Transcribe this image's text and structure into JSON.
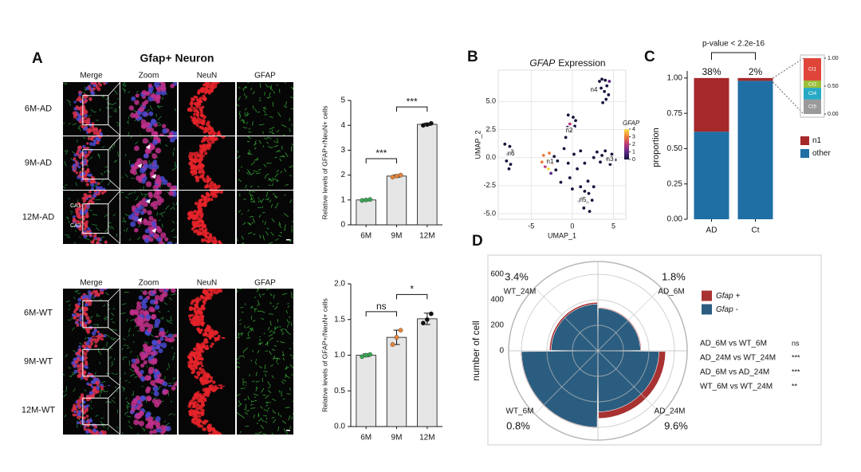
{
  "panel_a": {
    "label": "A",
    "title": "Gfap+ Neuron",
    "columns": [
      "Merge",
      "Zoom",
      "NeuN",
      "GFAP"
    ],
    "ad_rows": [
      "6M-AD",
      "9M-AD",
      "12M-AD"
    ],
    "wt_rows": [
      "6M-WT",
      "9M-WT",
      "12M-WT"
    ],
    "region_labels": [
      "CA1",
      "CA3"
    ],
    "ad_chart": {
      "type": "bar",
      "ylabel": "Relative levels of GFAP+/NeuN+ cells",
      "categories": [
        "6M",
        "9M",
        "12M"
      ],
      "values": [
        1.0,
        1.96,
        4.04
      ],
      "errors": [
        0.03,
        0.05,
        0.05
      ],
      "points": [
        [
          0.98,
          1.0,
          1.02
        ],
        [
          1.92,
          1.96,
          2.0
        ],
        [
          4.0,
          4.03,
          4.08
        ]
      ],
      "point_colors": [
        "#3aa655",
        "#e8843a",
        "#111111"
      ],
      "bar_color": "#e6e6e6",
      "ylim": [
        0,
        5
      ],
      "yticks": [
        0,
        1,
        2,
        3,
        4,
        5
      ],
      "comparisons": [
        {
          "groups": [
            "6M",
            "9M"
          ],
          "label": "***"
        },
        {
          "groups": [
            "9M",
            "12M"
          ],
          "label": "***"
        }
      ]
    },
    "wt_chart": {
      "type": "bar",
      "ylabel": "Relative levels of GFAP+/NeuN+ cells",
      "categories": [
        "6M",
        "9M",
        "12M"
      ],
      "values": [
        1.0,
        1.25,
        1.51
      ],
      "errors": [
        0.02,
        0.1,
        0.08
      ],
      "points": [
        [
          0.98,
          1.0,
          1.01
        ],
        [
          1.15,
          1.25,
          1.35
        ],
        [
          1.45,
          1.5,
          1.58
        ]
      ],
      "point_colors": [
        "#3aa655",
        "#e8843a",
        "#111111"
      ],
      "bar_color": "#e6e6e6",
      "ylim": [
        0,
        2
      ],
      "yticks": [
        {
          "value": 0,
          "label": "0.0"
        },
        {
          "value": 0.5,
          "label": "0.5"
        },
        {
          "value": 1,
          "label": "1.0"
        },
        {
          "value": 1.5,
          "label": "1.5"
        },
        {
          "value": 2,
          "label": "2.0"
        }
      ],
      "comparisons": [
        {
          "groups": [
            "6M",
            "9M"
          ],
          "label": "ns"
        },
        {
          "groups": [
            "9M",
            "12M"
          ],
          "label": "*"
        }
      ]
    }
  },
  "panel_b": {
    "type": "scatter",
    "label": "B",
    "title_gene": "GFAP",
    "title": "Expression",
    "xlabel": "UMAP_1",
    "ylabel": "UMAP_2",
    "xlim": [
      -9,
      6.5
    ],
    "ylim": [
      -5.5,
      7.8
    ],
    "xticks": [
      -5,
      0,
      5
    ],
    "yticks": [
      {
        "value": -5,
        "label": "-5.0"
      },
      {
        "value": -2.5,
        "label": "-2.5"
      },
      {
        "value": 0,
        "label": "0.0"
      },
      {
        "value": 2.5,
        "label": "2.5"
      },
      {
        "value": 5,
        "label": "5.0"
      }
    ],
    "grid": true,
    "clusters": [
      "n1",
      "n2",
      "n3",
      "n4",
      "n5",
      "n6"
    ],
    "color_scale": {
      "title": "GFAP",
      "ticks": [
        0,
        1,
        2,
        3,
        4
      ],
      "colors": [
        "#14143c",
        "#5b2a86",
        "#b8377a",
        "#ee7d3a",
        "#f7e04a"
      ]
    },
    "points": [
      [
        3.3,
        6.8,
        0
      ],
      [
        3.6,
        7.0,
        0
      ],
      [
        4.0,
        6.9,
        0
      ],
      [
        4.2,
        6.4,
        0
      ],
      [
        3.9,
        5.9,
        0
      ],
      [
        3.5,
        6.2,
        0
      ],
      [
        4.4,
        5.6,
        0
      ],
      [
        4.1,
        5.2,
        0
      ],
      [
        3.7,
        4.9,
        0
      ],
      [
        4.5,
        6.8,
        1
      ],
      [
        -0.5,
        3.8,
        0
      ],
      [
        0.1,
        3.6,
        0
      ],
      [
        -0.3,
        3.0,
        2
      ],
      [
        0.3,
        2.8,
        0
      ],
      [
        -0.1,
        2.4,
        0
      ],
      [
        0.4,
        3.3,
        0
      ],
      [
        -0.6,
        2.7,
        0
      ],
      [
        -8.2,
        1.2,
        0
      ],
      [
        -7.6,
        1.0,
        0
      ],
      [
        -7.9,
        0.3,
        0
      ],
      [
        -7.3,
        0.6,
        0
      ],
      [
        -8.0,
        -0.3,
        0
      ],
      [
        -7.5,
        -0.6,
        0
      ],
      [
        -7.7,
        -1.0,
        0
      ],
      [
        -3.5,
        0.2,
        3
      ],
      [
        -3.1,
        -0.2,
        4
      ],
      [
        -2.8,
        0.4,
        3
      ],
      [
        -2.4,
        -0.6,
        3
      ],
      [
        -3.3,
        -0.8,
        2
      ],
      [
        -2.9,
        -1.0,
        4
      ],
      [
        -2.2,
        0.1,
        0
      ],
      [
        -3.7,
        -0.4,
        3
      ],
      [
        -2.6,
        -1.4,
        1
      ],
      [
        -1.8,
        -0.3,
        0
      ],
      [
        -2.0,
        -1.1,
        0
      ],
      [
        -1.0,
        0.8,
        0
      ],
      [
        -0.5,
        -0.5,
        0
      ],
      [
        0.2,
        0.3,
        0
      ],
      [
        0.6,
        -1.0,
        0
      ],
      [
        -0.3,
        -1.8,
        0
      ],
      [
        1.0,
        0.6,
        0
      ],
      [
        -1.4,
        -2.2,
        0
      ],
      [
        0.0,
        -2.8,
        0
      ],
      [
        1.5,
        -0.5,
        0
      ],
      [
        -0.8,
        1.8,
        0
      ],
      [
        3.0,
        0.5,
        0
      ],
      [
        3.6,
        0.2,
        0
      ],
      [
        4.2,
        -0.1,
        0
      ],
      [
        4.8,
        0.3,
        0
      ],
      [
        5.2,
        -0.2,
        0
      ],
      [
        4.0,
        0.6,
        0
      ],
      [
        3.4,
        -0.4,
        0
      ],
      [
        2.6,
        0.0,
        0
      ],
      [
        4.6,
        -0.6,
        0
      ],
      [
        1.0,
        -2.6,
        0
      ],
      [
        1.5,
        -3.0,
        0
      ],
      [
        2.0,
        -3.2,
        0
      ],
      [
        1.2,
        -3.6,
        0
      ],
      [
        1.8,
        -4.0,
        0
      ],
      [
        2.4,
        -3.8,
        0
      ],
      [
        1.4,
        -4.5,
        0
      ],
      [
        2.1,
        -4.8,
        0
      ],
      [
        0.8,
        -3.9,
        0
      ],
      [
        2.6,
        -2.6,
        0
      ],
      [
        1.9,
        -2.1,
        0
      ]
    ]
  },
  "panel_c": {
    "type": "stacked_bar",
    "label": "C",
    "annotation": "p-value < 2.2e-16",
    "ylabel": "proportion",
    "categories": [
      "AD",
      "Ct"
    ],
    "series": [
      {
        "name": "n1",
        "color": "#a5282a",
        "values": [
          0.38,
          0.02
        ],
        "value_labels": [
          "38%",
          "2%"
        ]
      },
      {
        "name": "other",
        "color": "#1f6fa5",
        "values": [
          0.62,
          0.98
        ]
      }
    ],
    "ylim": [
      0,
      1.05
    ],
    "yticks": [
      {
        "value": 0,
        "label": "0.00"
      },
      {
        "value": 0.25,
        "label": "0.25"
      },
      {
        "value": 0.5,
        "label": "0.50"
      },
      {
        "value": 0.75,
        "label": "0.75"
      },
      {
        "value": 1,
        "label": "1.00"
      }
    ],
    "inset": {
      "categories": [
        "Ct1",
        "Ct2",
        "Ct4",
        "Ct5"
      ],
      "values": [
        0.4,
        0.13,
        0.21,
        0.26
      ],
      "colors": [
        "#e0453a",
        "#9bbf3a",
        "#27a9c5",
        "#9a9a9a"
      ],
      "ylim": [
        0,
        1
      ],
      "yticks": [
        {
          "value": 0,
          "label": "0.00"
        },
        {
          "value": 0.5,
          "label": "0.50"
        },
        {
          "value": 1,
          "label": "1.00"
        }
      ]
    }
  },
  "panel_d": {
    "type": "polar_bar",
    "label": "D",
    "ylabel": "number of cell",
    "groups": [
      {
        "name": "AD_6M",
        "percent": "1.8%"
      },
      {
        "name": "AD_24M",
        "percent": "9.6%"
      },
      {
        "name": "WT_6M",
        "percent": "0.8%"
      },
      {
        "name": "WT_24M",
        "percent": "3.4%"
      }
    ],
    "series": [
      {
        "name": "Gfap +",
        "color": "#a83232",
        "values": [
          6,
          51,
          5,
          13
        ]
      },
      {
        "name": "Gfap -",
        "color": "#2b5d80",
        "values": [
          334,
          479,
          600,
          367
        ]
      }
    ],
    "ylim": [
      0,
      700
    ],
    "yticks": [
      0,
      200,
      400,
      600
    ],
    "comparisons": [
      {
        "label": "AD_6M vs WT_6M",
        "sig": "ns"
      },
      {
        "label": "AD_24M vs WT_24M",
        "sig": "***"
      },
      {
        "label": "AD_6M vs AD_24M",
        "sig": "***"
      },
      {
        "label": "WT_6M vs WT_24M",
        "sig": "**"
      }
    ]
  }
}
